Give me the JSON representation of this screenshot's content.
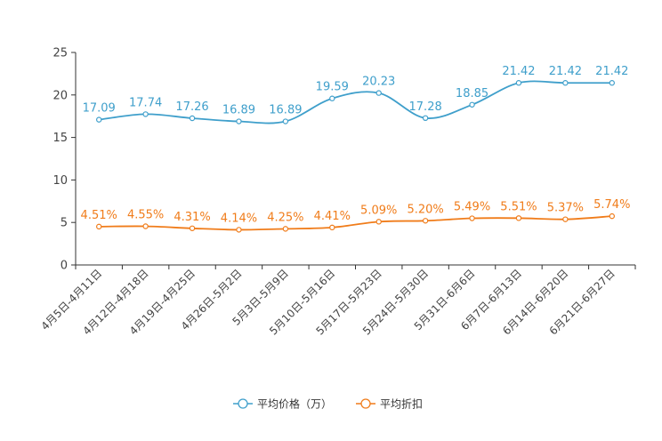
{
  "chart_data": {
    "type": "line",
    "categories": [
      "4月5日-4月11日",
      "4月12日-4月18日",
      "4月19日-4月25日",
      "4月26日-5月2日",
      "5月3日-5月9日",
      "5月10日-5月16日",
      "5月17日-5月23日",
      "5月24日-5月30日",
      "5月31日-6月6日",
      "6月7日-6月13日",
      "6月14日-6月20日",
      "6月21日-6月27日"
    ],
    "series": [
      {
        "name": "平均价格（万）",
        "color": "#3f9fcb",
        "values": [
          17.09,
          17.74,
          17.26,
          16.89,
          16.89,
          19.59,
          20.23,
          17.28,
          18.85,
          21.42,
          21.42,
          21.42
        ],
        "labels": [
          "17.09",
          "17.74",
          "17.26",
          "16.89",
          "16.89",
          "19.59",
          "20.23",
          "17.28",
          "18.85",
          "21.42",
          "21.42",
          "21.42"
        ]
      },
      {
        "name": "平均折扣",
        "color": "#f07c1a",
        "values": [
          4.51,
          4.55,
          4.31,
          4.14,
          4.25,
          4.41,
          5.09,
          5.2,
          5.49,
          5.51,
          5.37,
          5.74
        ],
        "labels": [
          "4.51%",
          "4.55%",
          "4.31%",
          "4.14%",
          "4.25%",
          "4.41%",
          "5.09%",
          "5.20%",
          "5.49%",
          "5.51%",
          "5.37%",
          "5.74%"
        ]
      }
    ],
    "y_ticks": [
      "0",
      "5",
      "10",
      "15",
      "20",
      "25"
    ],
    "ylim": [
      0,
      25
    ],
    "legend_position": "bottom-center",
    "grid": false
  }
}
